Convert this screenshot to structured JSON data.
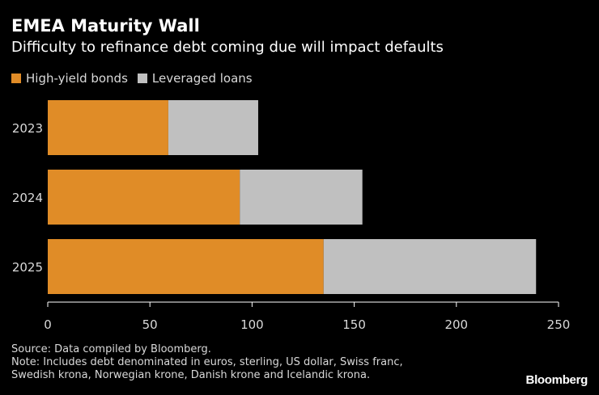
{
  "header": {
    "title": "EMEA Maturity Wall",
    "subtitle": "Difficulty to refinance debt coming due will impact defaults"
  },
  "colors": {
    "high_yield": "#e08c27",
    "leveraged": "#c0c0c0",
    "axis": "#ffffff",
    "tick_label": "#d9d9d9"
  },
  "chart_data": {
    "type": "bar",
    "orientation": "horizontal",
    "stacked": true,
    "title": "EMEA Maturity Wall",
    "subtitle": "Difficulty to refinance debt coming due will impact defaults",
    "categories": [
      "2023",
      "2024",
      "2025"
    ],
    "series": [
      {
        "name": "High-yield bonds",
        "values": [
          59,
          94,
          135
        ]
      },
      {
        "name": "Leveraged loans",
        "values": [
          44,
          60,
          104
        ]
      }
    ],
    "xlim": [
      0,
      250
    ],
    "xticks": [
      0,
      50,
      100,
      150,
      200,
      250
    ],
    "xlabel": "",
    "ylabel": "",
    "legend": "top-left",
    "grid": false
  },
  "footer": {
    "source": "Source: Data compiled by Bloomberg.",
    "note_line1": "Note: Includes debt denominated in euros, sterling, US dollar, Swiss franc,",
    "note_line2": "Swedish krona, Norwegian krone, Danish krone and Icelandic krona.",
    "brand": "Bloomberg"
  }
}
